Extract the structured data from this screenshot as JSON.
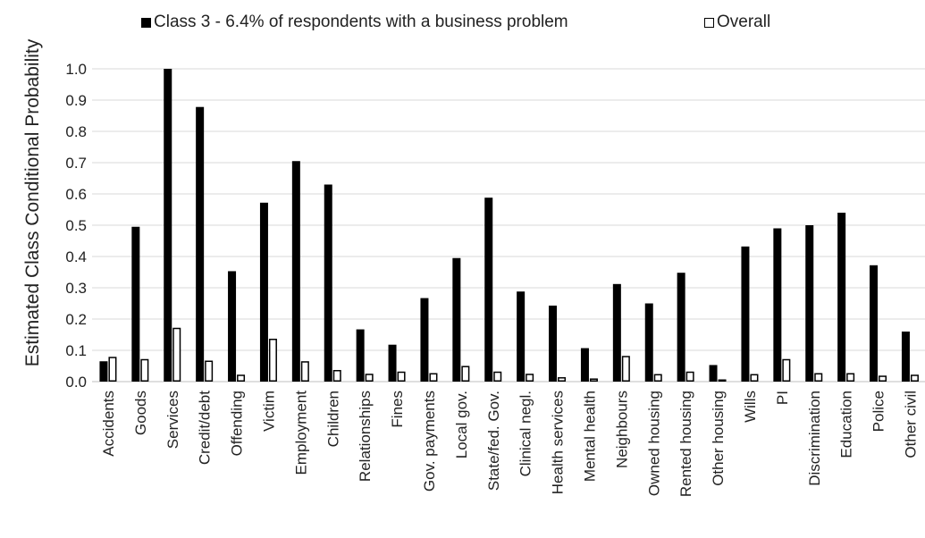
{
  "chart_data": {
    "type": "bar",
    "title": "",
    "xlabel": "",
    "ylabel": "Estimated Class Conditional Probability",
    "ylim": [
      0,
      1.0
    ],
    "yticks": [
      "0.0",
      "0.1",
      "0.2",
      "0.3",
      "0.4",
      "0.5",
      "0.6",
      "0.7",
      "0.8",
      "0.9",
      "1.0"
    ],
    "grid": true,
    "legend_position": "top",
    "categories": [
      "Accidents",
      "Goods",
      "Services",
      "Credit/debt",
      "Offending",
      "Victim",
      "Employment",
      "Children",
      "Relationships",
      "Fines",
      "Gov. payments",
      "Local gov.",
      "State/fed. Gov.",
      "Clinical negl.",
      "Health services",
      "Mental health",
      "Neighbours",
      "Owned housing",
      "Rented housing",
      "Other housing",
      "Wills",
      "PI",
      "Discrimination",
      "Education",
      "Police",
      "Other civil"
    ],
    "series": [
      {
        "name": "Class 3 - 6.4% of respondents with a business problem",
        "color": "#000000",
        "fill": "solid",
        "values": [
          0.065,
          0.495,
          1.0,
          0.878,
          0.353,
          0.572,
          0.705,
          0.63,
          0.167,
          0.118,
          0.267,
          0.395,
          0.588,
          0.288,
          0.243,
          0.107,
          0.312,
          0.25,
          0.348,
          0.053,
          0.432,
          0.49,
          0.5,
          0.54,
          0.372,
          0.16
        ]
      },
      {
        "name": "Overall",
        "color": "#000000",
        "fill": "open",
        "values": [
          0.077,
          0.07,
          0.17,
          0.065,
          0.02,
          0.135,
          0.063,
          0.035,
          0.023,
          0.03,
          0.025,
          0.048,
          0.03,
          0.023,
          0.012,
          0.008,
          0.08,
          0.022,
          0.03,
          0.005,
          0.022,
          0.07,
          0.025,
          0.025,
          0.017,
          0.02
        ]
      }
    ]
  }
}
